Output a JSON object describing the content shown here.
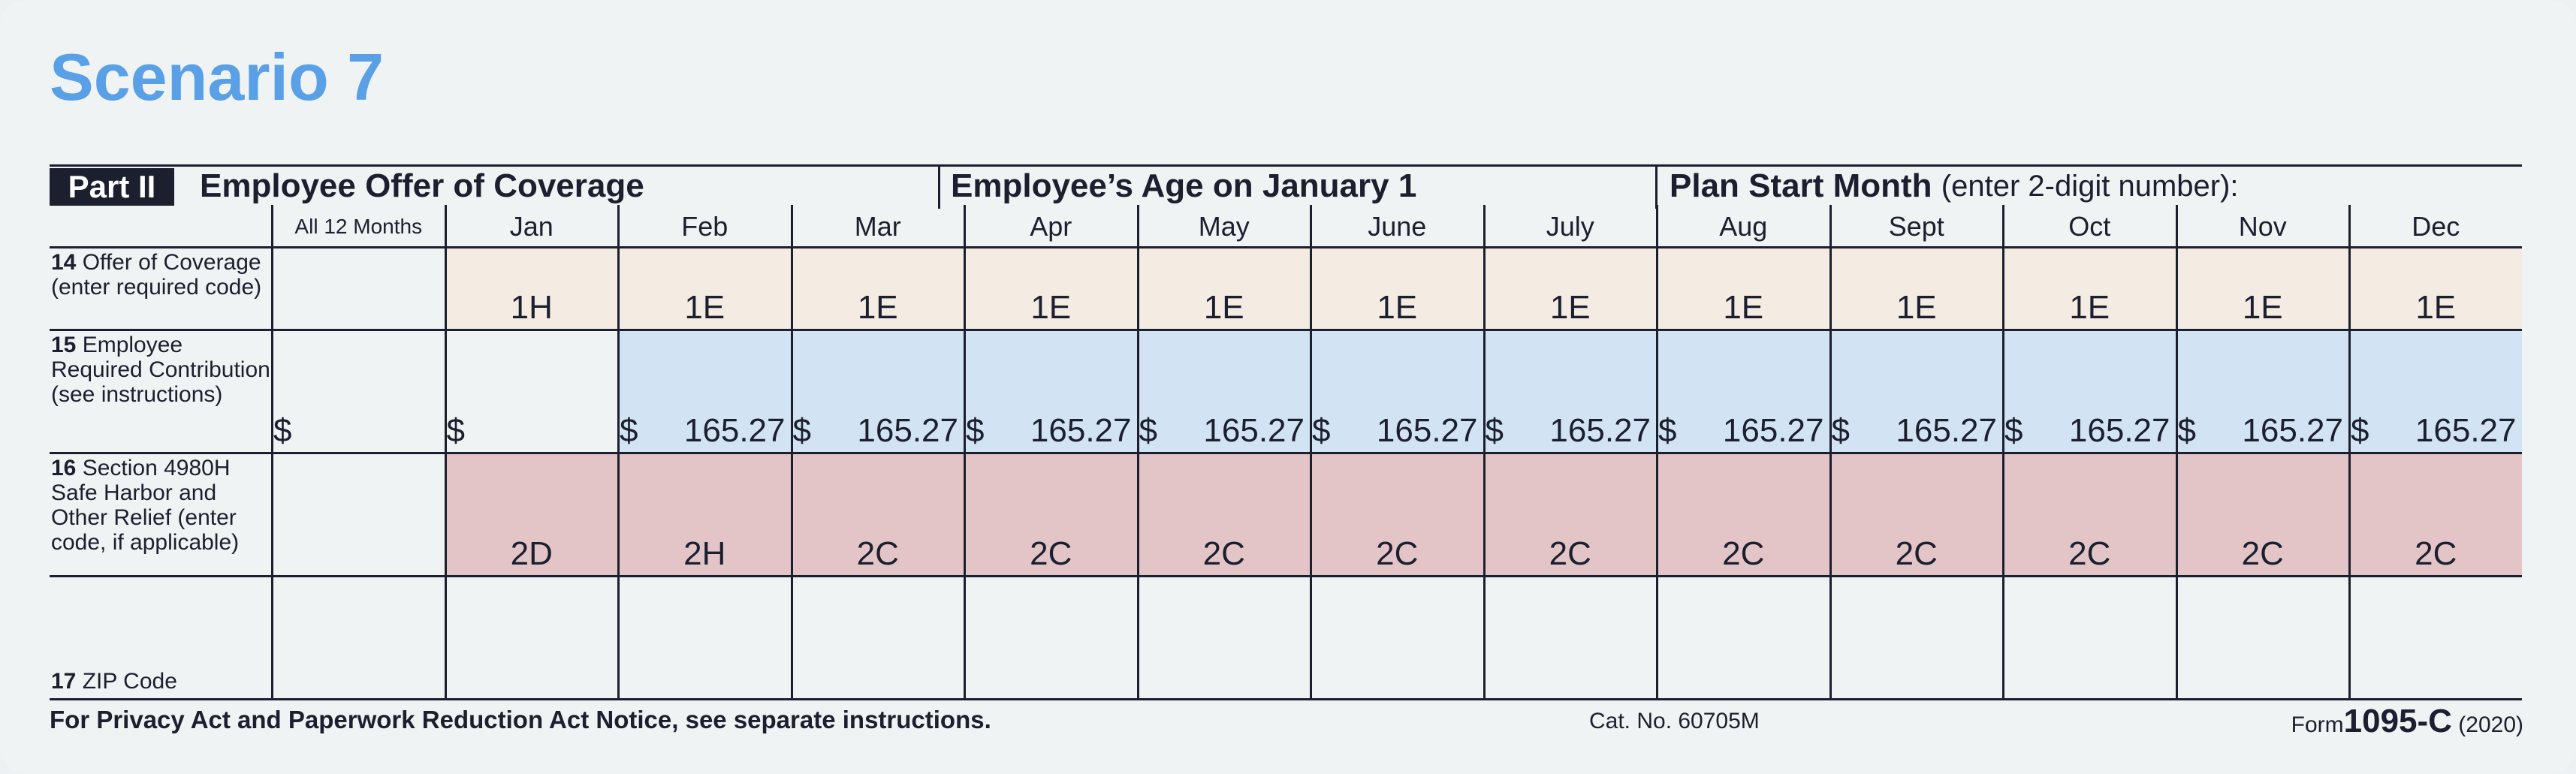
{
  "title": "Scenario 7",
  "header": {
    "part": "Part II",
    "section1": "Employee Offer of Coverage",
    "section2": "Employee’s Age on January 1",
    "section3_bold": "Plan Start Month",
    "section3_normal": "(enter 2-digit number):"
  },
  "columns": [
    "All 12 Months",
    "Jan",
    "Feb",
    "Mar",
    "Apr",
    "May",
    "June",
    "July",
    "Aug",
    "Sept",
    "Oct",
    "Nov",
    "Dec"
  ],
  "rows": {
    "line14": {
      "number": "14",
      "label": "Offer of Coverage (enter required code)",
      "values": [
        "",
        "1H",
        "1E",
        "1E",
        "1E",
        "1E",
        "1E",
        "1E",
        "1E",
        "1E",
        "1E",
        "1E",
        "1E"
      ]
    },
    "line15": {
      "number": "15",
      "label": "Employee Required Contribution (see instructions)",
      "currency": "$",
      "values": [
        "",
        "",
        "165.27",
        "165.27",
        "165.27",
        "165.27",
        "165.27",
        "165.27",
        "165.27",
        "165.27",
        "165.27",
        "165.27",
        "165.27"
      ]
    },
    "line16": {
      "number": "16",
      "label": "Section 4980H Safe Harbor and Other Relief (enter code, if applicable)",
      "values": [
        "",
        "2D",
        "2H",
        "2C",
        "2C",
        "2C",
        "2C",
        "2C",
        "2C",
        "2C",
        "2C",
        "2C",
        "2C"
      ]
    },
    "line17": {
      "number": "17",
      "label": "ZIP Code"
    }
  },
  "colors": {
    "title": "#5aa0e6",
    "row14": "#f4ece3",
    "row15": "#d2e3f4",
    "row16": "#e3c5c8"
  },
  "footer": {
    "privacy": "For Privacy Act and Paperwork Reduction Act Notice, see separate instructions.",
    "cat_no": "Cat. No. 60705M",
    "form_prefix": "Form",
    "form_number": "1095-C",
    "year": "(2020)"
  }
}
